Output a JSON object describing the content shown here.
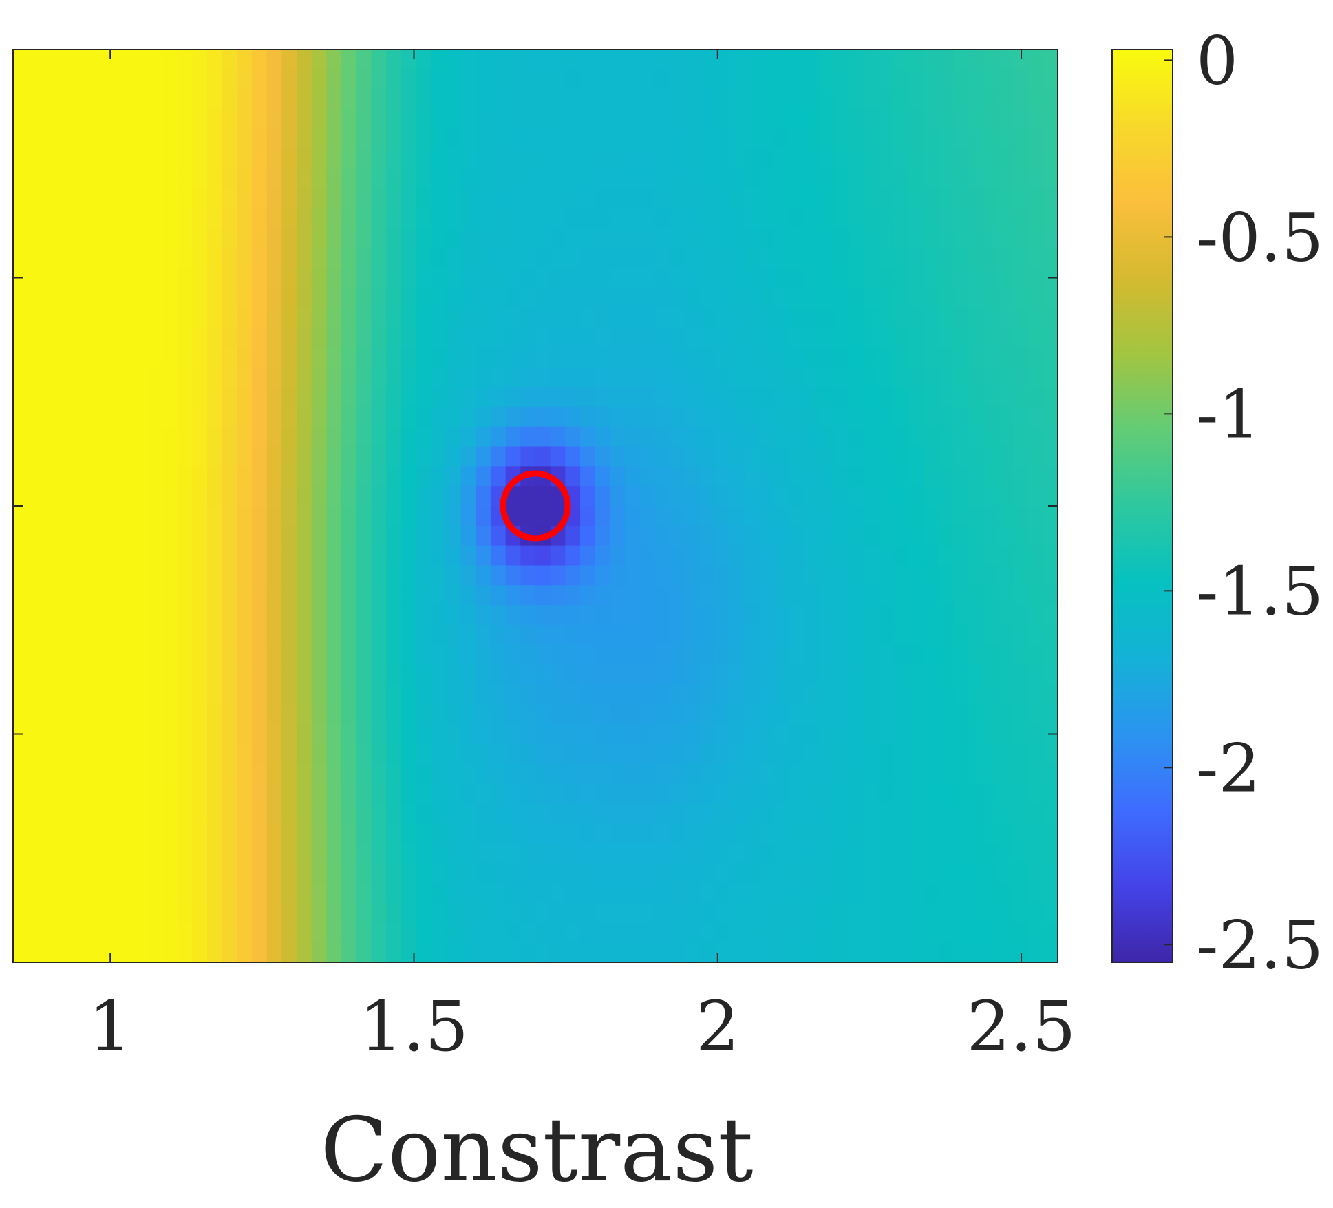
{
  "chart_data": {
    "type": "heatmap",
    "title": "",
    "xlabel": "Constrast",
    "ylabel": "",
    "xlim": [
      0.84,
      2.56
    ],
    "xticks": [
      {
        "value": 1,
        "label": "1"
      },
      {
        "value": 1.5,
        "label": "1.5"
      },
      {
        "value": 2,
        "label": "2"
      },
      {
        "value": 2.5,
        "label": "2.5"
      }
    ],
    "yticks_count": 3,
    "grid": false,
    "colorbar": {
      "range": [
        -2.55,
        0.03
      ],
      "colormap": "parula",
      "ticks": [
        {
          "value": 0,
          "label": "0"
        },
        {
          "value": -0.5,
          "label": "-0.5"
        },
        {
          "value": -1,
          "label": "-1"
        },
        {
          "value": -1.5,
          "label": "-1.5"
        },
        {
          "value": -2,
          "label": "-2"
        },
        {
          "value": -2.5,
          "label": "-2.5"
        }
      ],
      "colors": [
        "#3e26a8",
        "#4443e9",
        "#3e6cfe",
        "#2b94f0",
        "#14b2d6",
        "#06c1c0",
        "#2ec89f",
        "#62cc76",
        "#a3c541",
        "#d5ba2f",
        "#fbbf3c",
        "#f7d92a",
        "#f9fb0e"
      ]
    },
    "marker": {
      "x": 1.7,
      "y": 0,
      "shape": "circle",
      "color": "#ff0000"
    },
    "field": {
      "min_value": -2.5,
      "min_location": {
        "x": 1.7,
        "y": 0
      },
      "ridge_value": 0,
      "ridge_x_range": [
        1.0,
        1.15
      ]
    }
  }
}
